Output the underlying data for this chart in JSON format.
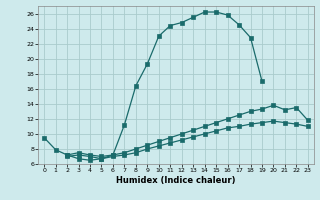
{
  "xlabel": "Humidex (Indice chaleur)",
  "bg_color": "#ceeaec",
  "grid_color": "#aacccc",
  "line_color": "#1a6b6b",
  "xlim": [
    -0.5,
    23.5
  ],
  "ylim": [
    6,
    27
  ],
  "xticks": [
    0,
    1,
    2,
    3,
    4,
    5,
    6,
    7,
    8,
    9,
    10,
    11,
    12,
    13,
    14,
    15,
    16,
    17,
    18,
    19,
    20,
    21,
    22,
    23
  ],
  "yticks": [
    6,
    8,
    10,
    12,
    14,
    16,
    18,
    20,
    22,
    24,
    26
  ],
  "curve1_x": [
    0,
    1,
    2,
    3,
    4,
    5,
    6,
    7,
    8,
    9,
    10,
    11,
    12,
    13,
    14,
    15,
    16,
    17,
    18,
    19
  ],
  "curve1_y": [
    9.5,
    7.9,
    7.2,
    6.7,
    6.5,
    6.7,
    7.2,
    11.2,
    16.4,
    19.3,
    23.0,
    24.4,
    24.8,
    25.5,
    26.2,
    26.2,
    25.8,
    24.5,
    22.8,
    17.0
  ],
  "curve2_x": [
    2,
    3,
    4,
    5,
    6,
    7,
    8,
    9,
    10,
    11,
    12,
    13,
    14,
    15,
    16,
    17,
    18,
    19,
    20,
    21,
    22,
    23
  ],
  "curve2_y": [
    7.2,
    7.5,
    7.2,
    7.0,
    7.2,
    7.5,
    8.0,
    8.5,
    9.0,
    9.5,
    10.0,
    10.5,
    11.0,
    11.5,
    12.0,
    12.5,
    13.0,
    13.3,
    13.8,
    13.2,
    13.5,
    11.8
  ],
  "curve3_x": [
    2,
    3,
    4,
    5,
    6,
    7,
    8,
    9,
    10,
    11,
    12,
    13,
    14,
    15,
    16,
    17,
    18,
    19,
    20,
    21,
    22,
    23
  ],
  "curve3_y": [
    7.0,
    7.2,
    7.0,
    6.7,
    7.0,
    7.2,
    7.5,
    8.0,
    8.4,
    8.8,
    9.2,
    9.6,
    10.0,
    10.4,
    10.8,
    11.0,
    11.3,
    11.5,
    11.7,
    11.5,
    11.3,
    11.0
  ]
}
